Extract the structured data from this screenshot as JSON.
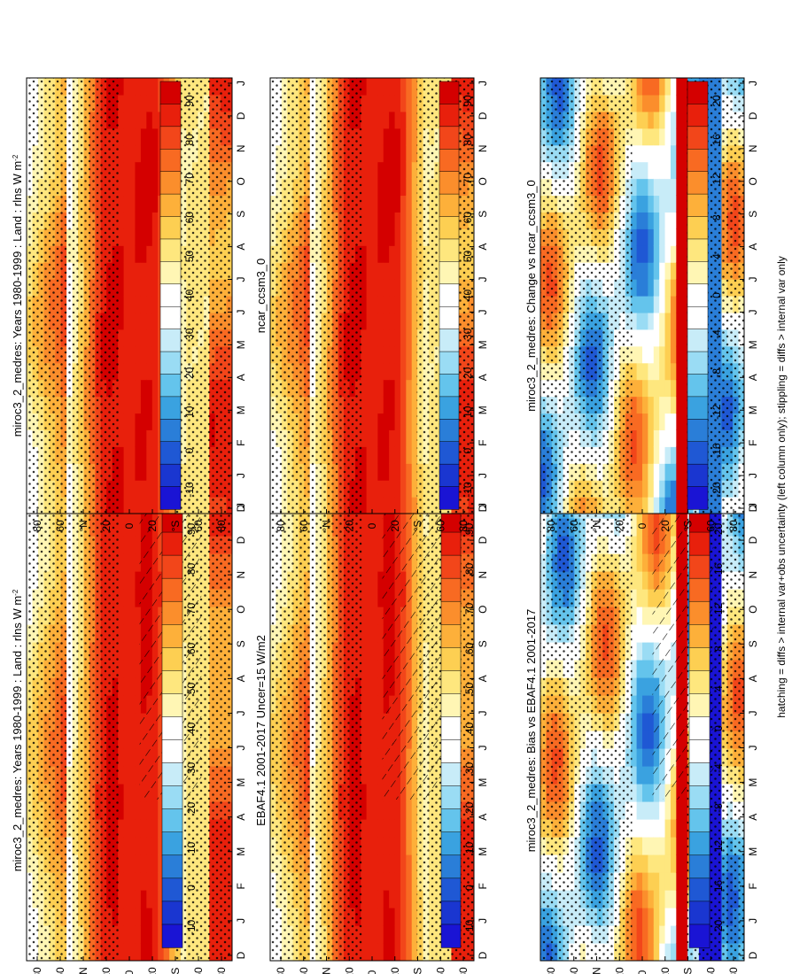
{
  "figure": {
    "footer": "hatching = diffs > internal var+obs uncertainty (left column only); stippling = diffs > internal var only"
  },
  "chart_data": [
    {
      "type": "heatmap",
      "title": "miroc3_2_medres: Years 1980-1999 : Land : rlns W m",
      "title_sup": "-2",
      "x_tick_labels": [
        "D",
        "J",
        "F",
        "M",
        "A",
        "M",
        "J",
        "J",
        "A",
        "S",
        "O",
        "N",
        "D",
        "J"
      ],
      "y_tick_labels": [
        "80",
        "60",
        "°N",
        "20",
        "0",
        "20",
        "°S",
        "60",
        "80"
      ],
      "ylim": [
        -90,
        90
      ],
      "colorbar": {
        "tick_labels": [
          "90",
          "80",
          "70",
          "60",
          "50",
          "40",
          "30",
          "20",
          "10",
          "0",
          "-10"
        ],
        "colors": [
          "#d40000",
          "#e8200c",
          "#f2461a",
          "#f86a22",
          "#fb8e2c",
          "#fdb03a",
          "#fdcf52",
          "#fee77e",
          "#fff6b4",
          "#ffffff",
          "#ffffff",
          "#c8ecf8",
          "#9adcf4",
          "#64c4ec",
          "#3aa2e0",
          "#2a7ed8",
          "#1f58d4",
          "#1a36d0",
          "#1a14d4"
        ]
      },
      "peak_value": 95,
      "hatching": true,
      "stippling": true
    },
    {
      "type": "heatmap",
      "title": "miroc3_2_medres: Years 1980-1999 : Land : rlns W m",
      "title_sup": "-2",
      "x_tick_labels": [
        "D",
        "J",
        "F",
        "M",
        "A",
        "M",
        "J",
        "J",
        "A",
        "S",
        "O",
        "N",
        "D",
        "J"
      ],
      "y_tick_labels": [
        "80",
        "60",
        "°N",
        "20",
        "0",
        "20",
        "°S",
        "60",
        "80"
      ],
      "ylim": [
        -90,
        90
      ],
      "colorbar": {
        "tick_labels": [
          "90",
          "80",
          "70",
          "60",
          "50",
          "40",
          "30",
          "20",
          "10",
          "0",
          "-10"
        ],
        "colors": [
          "#d40000",
          "#e8200c",
          "#f2461a",
          "#f86a22",
          "#fb8e2c",
          "#fdb03a",
          "#fdcf52",
          "#fee77e",
          "#fff6b4",
          "#ffffff",
          "#ffffff",
          "#c8ecf8",
          "#9adcf4",
          "#64c4ec",
          "#3aa2e0",
          "#2a7ed8",
          "#1f58d4",
          "#1a36d0",
          "#1a14d4"
        ]
      },
      "peak_value": 95,
      "hatching": false,
      "stippling": true
    },
    {
      "type": "heatmap",
      "title": "EBAF4.1 2001-2017 Uncer=15 W/m2",
      "title_sup": "",
      "x_tick_labels": [
        "D",
        "J",
        "F",
        "M",
        "A",
        "M",
        "J",
        "J",
        "A",
        "S",
        "O",
        "N",
        "D",
        "J"
      ],
      "y_tick_labels": [
        "80",
        "60",
        "°N",
        "20",
        "0",
        "20",
        "°S",
        "60",
        "80"
      ],
      "ylim": [
        -90,
        90
      ],
      "colorbar": {
        "tick_labels": [
          "90",
          "80",
          "70",
          "60",
          "50",
          "40",
          "30",
          "20",
          "10",
          "0",
          "-10"
        ],
        "colors": [
          "#d40000",
          "#e8200c",
          "#f2461a",
          "#f86a22",
          "#fb8e2c",
          "#fdb03a",
          "#fdcf52",
          "#fee77e",
          "#fff6b4",
          "#ffffff",
          "#ffffff",
          "#c8ecf8",
          "#9adcf4",
          "#64c4ec",
          "#3aa2e0",
          "#2a7ed8",
          "#1f58d4",
          "#1a36d0",
          "#1a14d4"
        ]
      },
      "peak_value": 95,
      "hatching": true,
      "stippling": true
    },
    {
      "type": "heatmap",
      "title": "ncar_ccsm3_0",
      "title_sup": "",
      "x_tick_labels": [
        "D",
        "J",
        "F",
        "M",
        "A",
        "M",
        "J",
        "J",
        "A",
        "S",
        "O",
        "N",
        "D",
        "J"
      ],
      "y_tick_labels": [
        "80",
        "60",
        "°N",
        "20",
        "0",
        "20",
        "°S",
        "60",
        "80"
      ],
      "ylim": [
        -90,
        90
      ],
      "colorbar": {
        "tick_labels": [
          "90",
          "80",
          "70",
          "60",
          "50",
          "40",
          "30",
          "20",
          "10",
          "0",
          "-10"
        ],
        "colors": [
          "#d40000",
          "#e8200c",
          "#f2461a",
          "#f86a22",
          "#fb8e2c",
          "#fdb03a",
          "#fdcf52",
          "#fee77e",
          "#fff6b4",
          "#ffffff",
          "#ffffff",
          "#c8ecf8",
          "#9adcf4",
          "#64c4ec",
          "#3aa2e0",
          "#2a7ed8",
          "#1f58d4",
          "#1a36d0",
          "#1a14d4"
        ]
      },
      "peak_value": 95,
      "hatching": false,
      "stippling": true
    },
    {
      "type": "heatmap",
      "title": "miroc3_2_medres: Bias vs EBAF4.1 2001-2017",
      "title_sup": "",
      "x_tick_labels": [
        "D",
        "J",
        "F",
        "M",
        "A",
        "M",
        "J",
        "J",
        "A",
        "S",
        "O",
        "N",
        "D",
        "J"
      ],
      "y_tick_labels": [
        "80",
        "60",
        "°N",
        "20",
        "0",
        "20",
        "°S",
        "60",
        "80"
      ],
      "ylim": [
        -90,
        90
      ],
      "colorbar": {
        "tick_labels": [
          "20",
          "16",
          "12",
          "8",
          "4",
          "0",
          "-4",
          "-8",
          "-12",
          "-16",
          "-20"
        ],
        "colors": [
          "#d40000",
          "#e8200c",
          "#f2461a",
          "#f86a22",
          "#fb8e2c",
          "#fdb03a",
          "#fdcf52",
          "#fee77e",
          "#fff6b4",
          "#ffffff",
          "#ffffff",
          "#c8ecf8",
          "#9adcf4",
          "#64c4ec",
          "#3aa2e0",
          "#2a7ed8",
          "#1f58d4",
          "#1a36d0",
          "#1a14d4"
        ]
      },
      "peak_value": 22,
      "hatching": true,
      "stippling": true
    },
    {
      "type": "heatmap",
      "title": "miroc3_2_medres: Change vs ncar_ccsm3_0",
      "title_sup": "",
      "x_tick_labels": [
        "D",
        "J",
        "F",
        "M",
        "A",
        "M",
        "J",
        "J",
        "A",
        "S",
        "O",
        "N",
        "D",
        "J"
      ],
      "y_tick_labels": [
        "80",
        "60",
        "°N",
        "20",
        "0",
        "20",
        "°S",
        "60",
        "80"
      ],
      "ylim": [
        -90,
        90
      ],
      "colorbar": {
        "tick_labels": [
          "20",
          "16",
          "12",
          "8",
          "4",
          "0",
          "-4",
          "-8",
          "-12",
          "-16",
          "-20"
        ],
        "colors": [
          "#d40000",
          "#e8200c",
          "#f2461a",
          "#f86a22",
          "#fb8e2c",
          "#fdb03a",
          "#fdcf52",
          "#fee77e",
          "#fff6b4",
          "#ffffff",
          "#ffffff",
          "#c8ecf8",
          "#9adcf4",
          "#64c4ec",
          "#3aa2e0",
          "#2a7ed8",
          "#1f58d4",
          "#1a36d0",
          "#1a14d4"
        ]
      },
      "peak_value": 22,
      "hatching": false,
      "stippling": true
    }
  ]
}
